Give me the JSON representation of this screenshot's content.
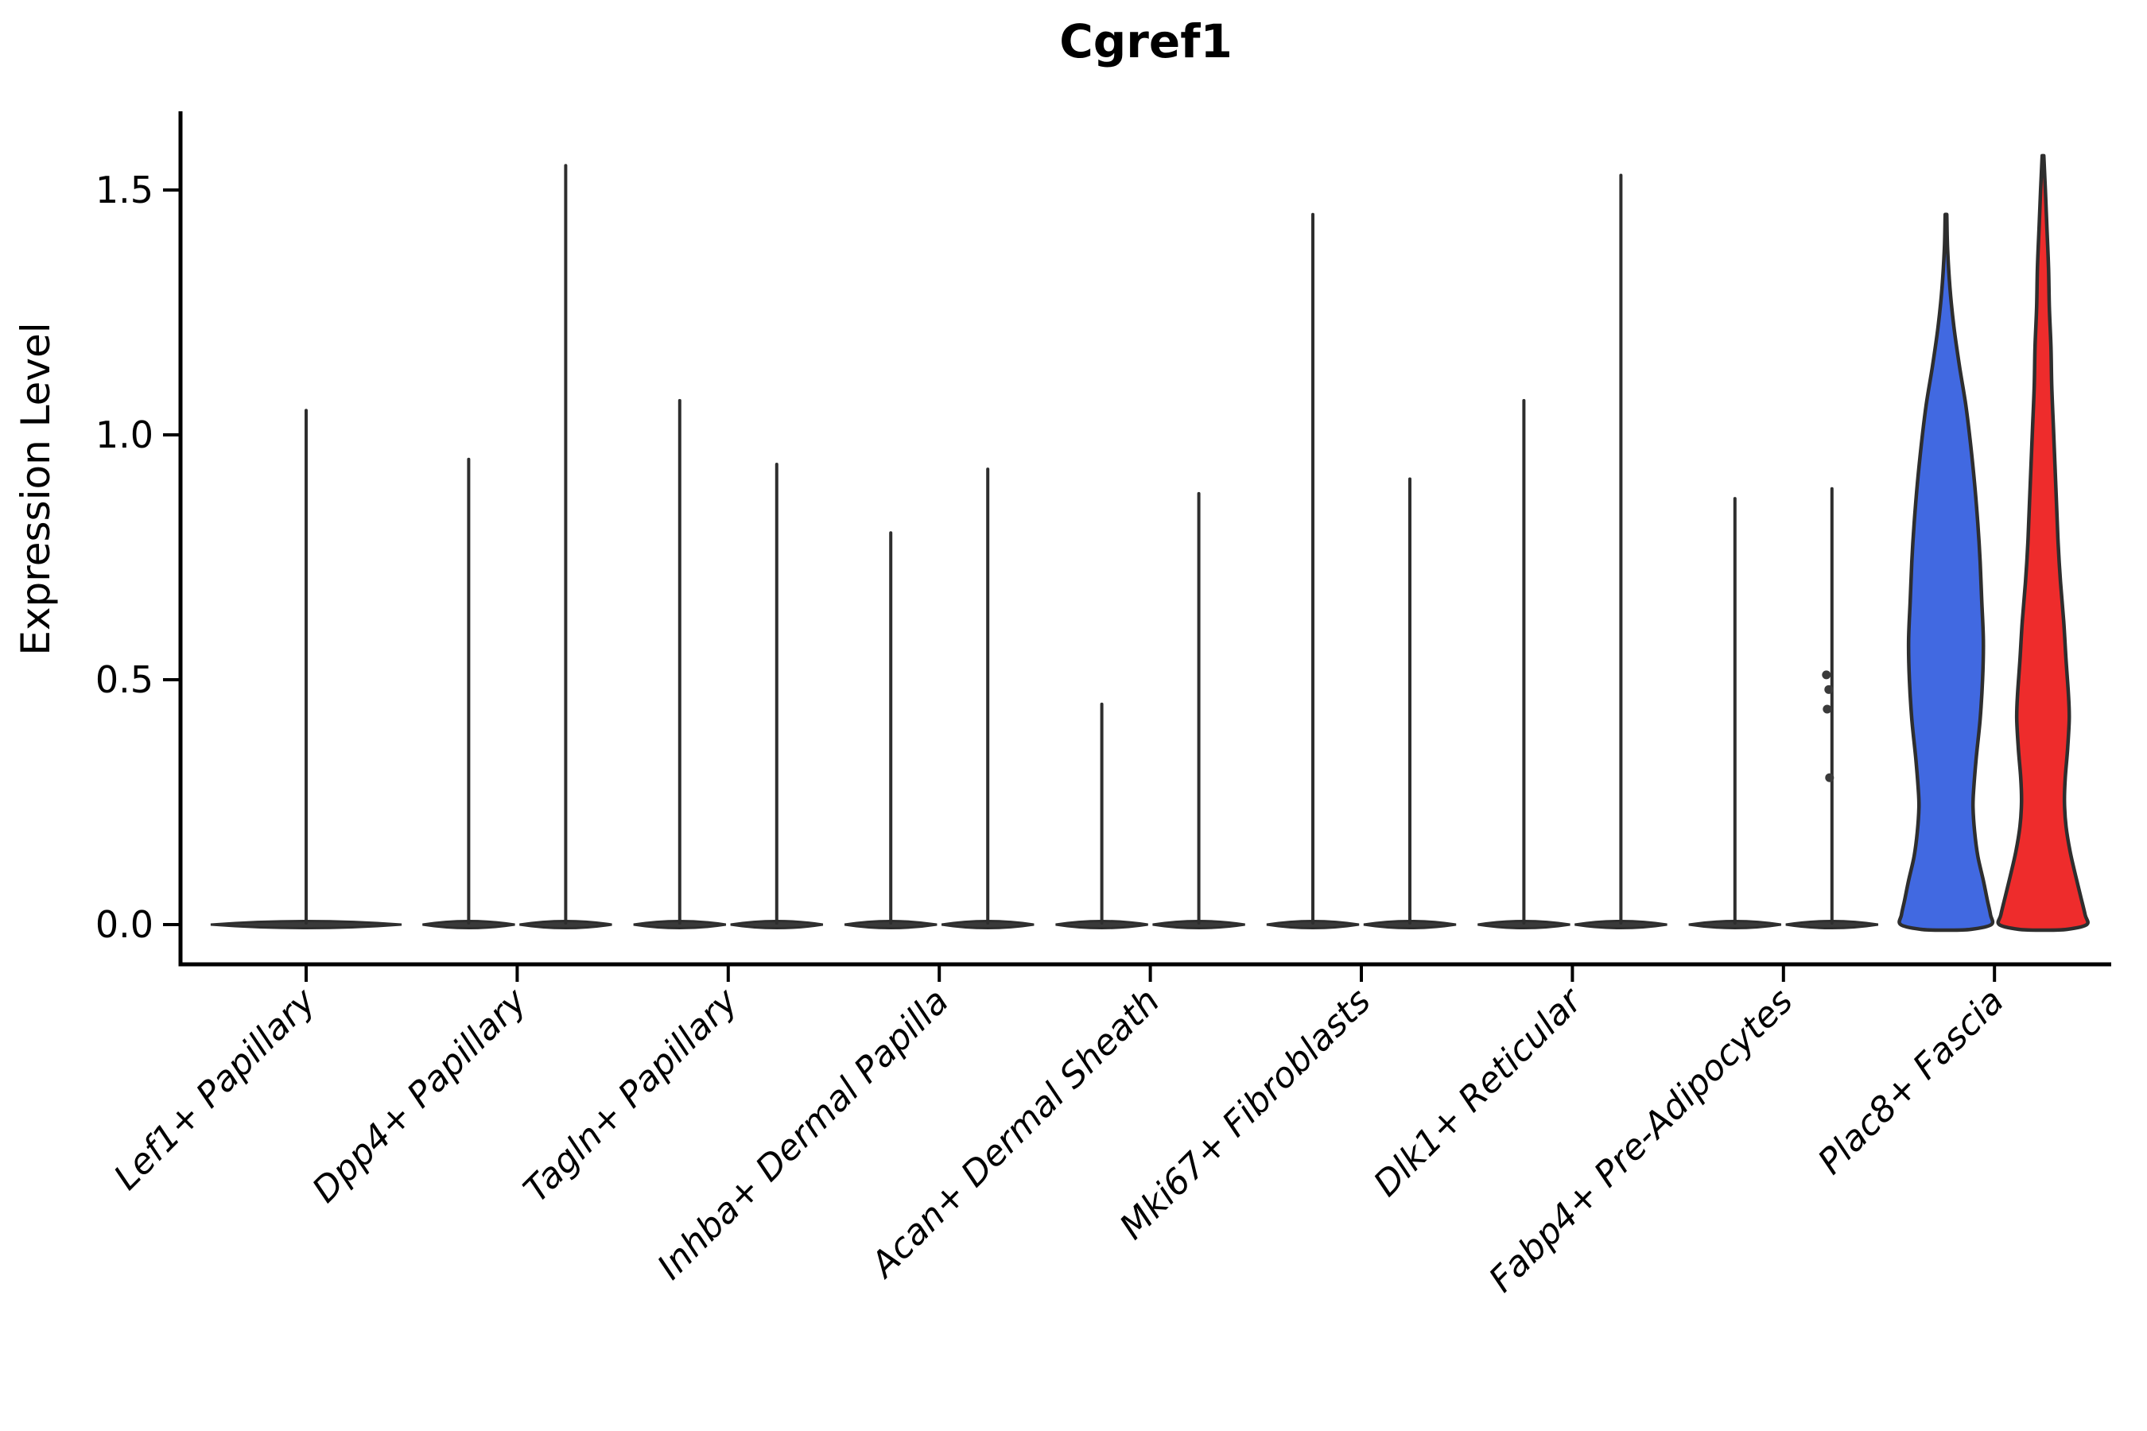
{
  "chart_data": {
    "type": "violin",
    "title": "Cgref1",
    "ylabel": "Expression Level",
    "xlabel": "",
    "yticks": [
      "0.0",
      "0.5",
      "1.0",
      "1.5"
    ],
    "ytick_values": [
      0.0,
      0.5,
      1.0,
      1.5
    ],
    "ylim": [
      -0.08,
      1.66
    ],
    "grid": false,
    "legend_position": "none",
    "categories": [
      "Lef1+ Papillary",
      "Dpp4+ Papillary",
      "Tagln+ Papillary",
      "Inhba+ Dermal Papilla",
      "Acan+ Dermal Sheath",
      "Mki67+ Fibroblasts",
      "Dlk1+ Reticular",
      "Fabp4+ Pre-Adipocytes",
      "Plac8+ Fascia"
    ],
    "violins": [
      {
        "category": "Lef1+ Papillary",
        "position": "center",
        "max_expression": 1.05,
        "style": "spike",
        "wide_base": true
      },
      {
        "category": "Dpp4+ Papillary",
        "position": "left",
        "max_expression": 0.95,
        "style": "spike"
      },
      {
        "category": "Dpp4+ Papillary",
        "position": "right",
        "max_expression": 1.55,
        "style": "spike"
      },
      {
        "category": "Tagln+ Papillary",
        "position": "left",
        "max_expression": 1.07,
        "style": "spike"
      },
      {
        "category": "Tagln+ Papillary",
        "position": "right",
        "max_expression": 0.94,
        "style": "spike"
      },
      {
        "category": "Inhba+ Dermal Papilla",
        "position": "left",
        "max_expression": 0.8,
        "style": "spike"
      },
      {
        "category": "Inhba+ Dermal Papilla",
        "position": "right",
        "max_expression": 0.93,
        "style": "spike"
      },
      {
        "category": "Acan+ Dermal Sheath",
        "position": "left",
        "max_expression": 0.45,
        "style": "spike"
      },
      {
        "category": "Acan+ Dermal Sheath",
        "position": "right",
        "max_expression": 0.88,
        "style": "spike"
      },
      {
        "category": "Mki67+ Fibroblasts",
        "position": "left",
        "max_expression": 1.45,
        "style": "spike"
      },
      {
        "category": "Mki67+ Fibroblasts",
        "position": "right",
        "max_expression": 0.91,
        "style": "spike"
      },
      {
        "category": "Dlk1+ Reticular",
        "position": "left",
        "max_expression": 1.07,
        "style": "spike"
      },
      {
        "category": "Dlk1+ Reticular",
        "position": "right",
        "max_expression": 1.53,
        "style": "spike"
      },
      {
        "category": "Fabp4+ Pre-Adipocytes",
        "position": "left",
        "max_expression": 0.87,
        "style": "spike"
      },
      {
        "category": "Fabp4+ Pre-Adipocytes",
        "position": "right",
        "max_expression": 0.89,
        "style": "spike",
        "points": [
          0.51,
          0.48,
          0.44,
          0.3
        ]
      },
      {
        "category": "Plac8+ Fascia",
        "position": "left",
        "max_expression": 1.45,
        "style": "filled",
        "fill": "#4169e1",
        "profile": "plac8_left"
      },
      {
        "category": "Plac8+ Fascia",
        "position": "right",
        "max_expression": 1.57,
        "style": "filled",
        "fill": "#ee2c2c",
        "profile": "plac8_right"
      }
    ],
    "profiles": {
      "plac8_left": [
        [
          1.45,
          1
        ],
        [
          1.38,
          2
        ],
        [
          1.3,
          5
        ],
        [
          1.22,
          10
        ],
        [
          1.14,
          17
        ],
        [
          1.06,
          25
        ],
        [
          0.98,
          31
        ],
        [
          0.9,
          36
        ],
        [
          0.82,
          40
        ],
        [
          0.74,
          43
        ],
        [
          0.66,
          45
        ],
        [
          0.58,
          47
        ],
        [
          0.5,
          46
        ],
        [
          0.42,
          43
        ],
        [
          0.34,
          38
        ],
        [
          0.28,
          35
        ],
        [
          0.24,
          34
        ],
        [
          0.19,
          36
        ],
        [
          0.14,
          40
        ],
        [
          0.09,
          47
        ],
        [
          0.05,
          52
        ],
        [
          0.02,
          56
        ],
        [
          0.0,
          57
        ]
      ],
      "plac8_right": [
        [
          1.57,
          1
        ],
        [
          1.5,
          3
        ],
        [
          1.42,
          5
        ],
        [
          1.34,
          7
        ],
        [
          1.26,
          8
        ],
        [
          1.18,
          10
        ],
        [
          1.1,
          11
        ],
        [
          1.02,
          13
        ],
        [
          0.94,
          15
        ],
        [
          0.86,
          17
        ],
        [
          0.78,
          19
        ],
        [
          0.7,
          22
        ],
        [
          0.62,
          26
        ],
        [
          0.54,
          29
        ],
        [
          0.47,
          32
        ],
        [
          0.42,
          33
        ],
        [
          0.36,
          31
        ],
        [
          0.3,
          28
        ],
        [
          0.25,
          27
        ],
        [
          0.2,
          29
        ],
        [
          0.15,
          34
        ],
        [
          0.1,
          41
        ],
        [
          0.06,
          47
        ],
        [
          0.02,
          53
        ],
        [
          0.0,
          55
        ]
      ]
    },
    "colors": {
      "outline": "#2e2e2e",
      "axis": "#000000",
      "blue_fill": "#4169e1",
      "red_fill": "#ee2c2c",
      "point": "#3a3a3a"
    }
  }
}
